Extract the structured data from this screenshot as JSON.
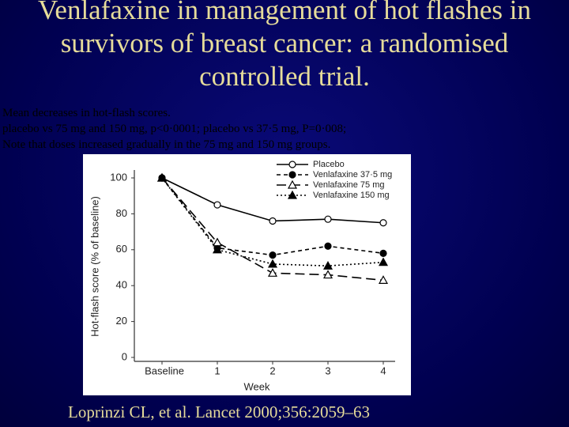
{
  "slide": {
    "title": "Venlafaxine in management of hot flashes in survivors of breast cancer: a randomised controlled trial.",
    "notes": [
      "Mean decreases in hot-flash scores.",
      "placebo vs 75 mg and 150 mg, p<0·0001; placebo vs 37·5 mg, P=0·008;",
      "Note that doses increased gradually in the 75 mg and 150 mg groups."
    ],
    "citation": "Loprinzi CL, et al. Lancet 2000;356:2059–63"
  },
  "chart_data": {
    "type": "line",
    "x_label": "Week",
    "y_label": "Hot-flash score (% of baseline)",
    "categories": [
      "Baseline",
      "1",
      "2",
      "3",
      "4"
    ],
    "series": [
      {
        "name": "Placebo",
        "color": "#000000",
        "marker": "circle-open",
        "dash": "solid",
        "values": [
          100,
          85,
          76,
          77,
          75
        ]
      },
      {
        "name": "Venlafaxine 37·5 mg",
        "color": "#000000",
        "marker": "circle-filled",
        "dash": "short-dash",
        "values": [
          100,
          61,
          57,
          62,
          58
        ]
      },
      {
        "name": "Venlafaxine 75 mg",
        "color": "#000000",
        "marker": "triangle-open",
        "dash": "long-dash",
        "values": [
          100,
          64,
          47,
          46,
          43
        ]
      },
      {
        "name": "Venlafaxine 150 mg",
        "color": "#000000",
        "marker": "triangle-filled",
        "dash": "dotted",
        "values": [
          100,
          60,
          52,
          51,
          53
        ]
      }
    ],
    "ylim": [
      0,
      100
    ],
    "yticks": [
      0,
      20,
      40,
      60,
      80,
      100
    ],
    "legend": "top-right"
  }
}
